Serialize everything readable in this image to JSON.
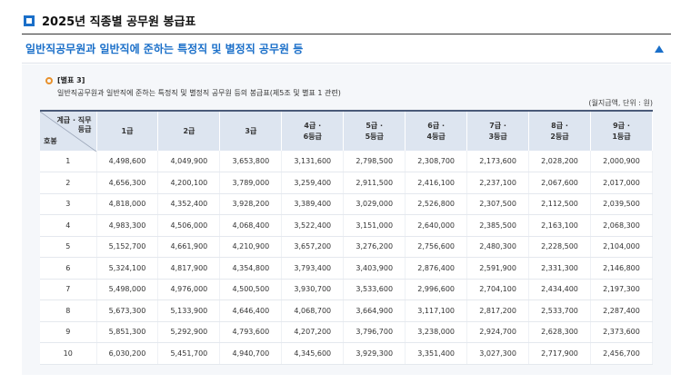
{
  "page": {
    "title": "2025년 직종별 공무원 봉급표"
  },
  "section": {
    "title": "일반직공무원과 일반직에 준하는 특정직 및 별정직 공무원 등"
  },
  "note": {
    "label": "[별표 3]",
    "description": "일반직공무원과 일반직에 준하는 특정직 및 별정직 공무원 등의 봉급표(제5조 및 별표 1 관련)"
  },
  "unit": "(월지급액, 단위 : 원)",
  "table": {
    "corner_top_line1": "계급 · 직무",
    "corner_top_line2": "등급",
    "corner_bottom": "호봉",
    "columns": [
      {
        "line1": "1급",
        "line2": ""
      },
      {
        "line1": "2급",
        "line2": ""
      },
      {
        "line1": "3급",
        "line2": ""
      },
      {
        "line1": "4급 ·",
        "line2": "6등급"
      },
      {
        "line1": "5급 ·",
        "line2": "5등급"
      },
      {
        "line1": "6급 ·",
        "line2": "4등급"
      },
      {
        "line1": "7급 ·",
        "line2": "3등급"
      },
      {
        "line1": "8급 ·",
        "line2": "2등급"
      },
      {
        "line1": "9급 ·",
        "line2": "1등급"
      }
    ],
    "rows": [
      [
        "1",
        "4,498,600",
        "4,049,900",
        "3,653,800",
        "3,131,600",
        "2,798,500",
        "2,308,700",
        "2,173,600",
        "2,028,200",
        "2,000,900"
      ],
      [
        "2",
        "4,656,300",
        "4,200,100",
        "3,789,000",
        "3,259,400",
        "2,911,500",
        "2,416,100",
        "2,237,100",
        "2,067,600",
        "2,017,000"
      ],
      [
        "3",
        "4,818,000",
        "4,352,400",
        "3,928,200",
        "3,389,400",
        "3,029,000",
        "2,526,800",
        "2,307,500",
        "2,112,500",
        "2,039,500"
      ],
      [
        "4",
        "4,983,300",
        "4,506,000",
        "4,068,400",
        "3,522,400",
        "3,151,000",
        "2,640,000",
        "2,385,500",
        "2,163,100",
        "2,068,300"
      ],
      [
        "5",
        "5,152,700",
        "4,661,900",
        "4,210,900",
        "3,657,200",
        "3,276,200",
        "2,756,600",
        "2,480,300",
        "2,228,500",
        "2,104,000"
      ],
      [
        "6",
        "5,324,100",
        "4,817,900",
        "4,354,800",
        "3,793,400",
        "3,403,900",
        "2,876,400",
        "2,591,900",
        "2,331,300",
        "2,146,800"
      ],
      [
        "7",
        "5,498,000",
        "4,976,000",
        "4,500,500",
        "3,930,700",
        "3,533,600",
        "2,996,600",
        "2,704,100",
        "2,434,400",
        "2,197,300"
      ],
      [
        "8",
        "5,673,300",
        "5,133,900",
        "4,646,400",
        "4,068,700",
        "3,664,900",
        "3,117,100",
        "2,817,200",
        "2,533,700",
        "2,287,400"
      ],
      [
        "9",
        "5,851,300",
        "5,292,900",
        "4,793,600",
        "4,207,200",
        "3,796,700",
        "3,238,000",
        "2,924,700",
        "2,628,300",
        "2,373,600"
      ],
      [
        "10",
        "6,030,200",
        "5,451,700",
        "4,940,700",
        "4,345,600",
        "3,929,300",
        "3,351,400",
        "3,027,300",
        "2,717,900",
        "2,456,700"
      ]
    ]
  }
}
